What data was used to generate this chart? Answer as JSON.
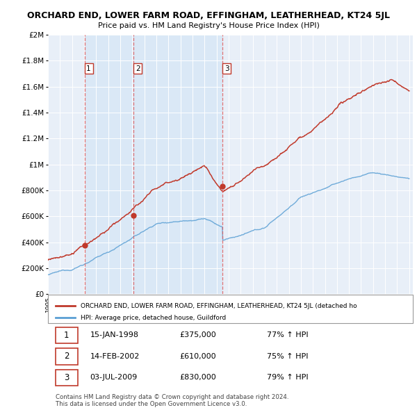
{
  "title": "ORCHARD END, LOWER FARM ROAD, EFFINGHAM, LEATHERHEAD, KT24 5JL",
  "subtitle": "Price paid vs. HM Land Registry's House Price Index (HPI)",
  "hpi_color": "#aec6e8",
  "hpi_line_color": "#5a9fd4",
  "price_color": "#c0392b",
  "vline_color": "#e05c5c",
  "shade_color": "#dce8f5",
  "background_color": "#ffffff",
  "plot_bg_color": "#e8eff8",
  "ylim": [
    0,
    2000000
  ],
  "yticks": [
    0,
    200000,
    400000,
    600000,
    800000,
    1000000,
    1200000,
    1400000,
    1600000,
    1800000,
    2000000
  ],
  "ytick_labels": [
    "£0",
    "£200K",
    "£400K",
    "£600K",
    "£800K",
    "£1M",
    "£1.2M",
    "£1.4M",
    "£1.6M",
    "£1.8M",
    "£2M"
  ],
  "xlim_start": 1995.3,
  "xlim_end": 2025.3,
  "sale_dates": [
    1998.04,
    2002.12,
    2009.51
  ],
  "sale_prices": [
    375000,
    610000,
    830000
  ],
  "sale_labels": [
    "1",
    "2",
    "3"
  ],
  "legend_price_label": "ORCHARD END, LOWER FARM ROAD, EFFINGHAM, LEATHERHEAD, KT24 5JL (detached ho",
  "legend_hpi_label": "HPI: Average price, detached house, Guildford",
  "table_data": [
    [
      "1",
      "15-JAN-1998",
      "£375,000",
      "77% ↑ HPI"
    ],
    [
      "2",
      "14-FEB-2002",
      "£610,000",
      "75% ↑ HPI"
    ],
    [
      "3",
      "03-JUL-2009",
      "£830,000",
      "79% ↑ HPI"
    ]
  ],
  "footnote1": "Contains HM Land Registry data © Crown copyright and database right 2024.",
  "footnote2": "This data is licensed under the Open Government Licence v3.0."
}
